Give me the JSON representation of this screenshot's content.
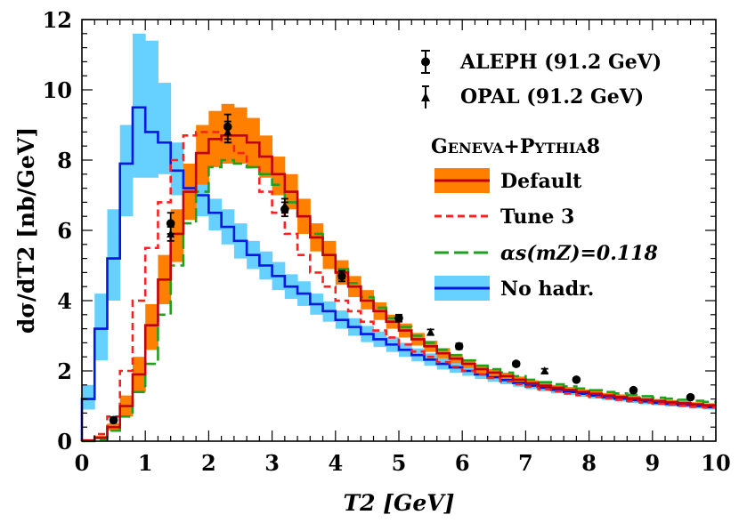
{
  "chart_data": {
    "type": "line",
    "xlabel": "T2 [GeV]",
    "ylabel": "dσ/dT2 [nb/GeV]",
    "xlim": [
      0,
      10
    ],
    "ylim": [
      0,
      12
    ],
    "x_ticks": [
      "0",
      "1",
      "2",
      "3",
      "4",
      "5",
      "6",
      "7",
      "8",
      "9",
      "10"
    ],
    "y_ticks": [
      "0",
      "2",
      "4",
      "6",
      "8",
      "10",
      "12"
    ],
    "legend_header": "Geneva+Pythia8",
    "legend_header_parts": [
      {
        "text": "G",
        "big": true
      },
      {
        "text": "ENEVA",
        "big": false
      },
      {
        "text": "+P",
        "big": true
      },
      {
        "text": "YTHIA",
        "big": false
      },
      {
        "text": "8",
        "big": true
      }
    ],
    "bin_edges": [
      0,
      0.2,
      0.4,
      0.6,
      0.8,
      1.0,
      1.2,
      1.4,
      1.6,
      1.8,
      2.0,
      2.2,
      2.4,
      2.6,
      2.8,
      3.0,
      3.2,
      3.4,
      3.6,
      3.8,
      4.0,
      4.2,
      4.4,
      4.6,
      4.8,
      5.0,
      5.2,
      5.4,
      5.6,
      5.8,
      6.0,
      6.2,
      6.4,
      6.6,
      6.8,
      7.0,
      7.2,
      7.4,
      7.6,
      7.8,
      8.0,
      8.2,
      8.4,
      8.6,
      8.8,
      9.0,
      9.2,
      9.4,
      9.6,
      9.8,
      10.0
    ],
    "series": [
      {
        "name": "Default",
        "style": "solid",
        "color": "#c0000a",
        "band_color": "#ff8000",
        "values": [
          0.02,
          0.1,
          0.4,
          1.0,
          1.9,
          3.3,
          4.6,
          5.9,
          7.1,
          8.2,
          8.6,
          8.7,
          8.7,
          8.5,
          8.1,
          7.6,
          7.1,
          6.4,
          5.8,
          5.3,
          4.8,
          4.4,
          4.0,
          3.7,
          3.4,
          3.15,
          2.9,
          2.7,
          2.5,
          2.35,
          2.2,
          2.05,
          1.95,
          1.85,
          1.75,
          1.65,
          1.58,
          1.52,
          1.46,
          1.4,
          1.35,
          1.3,
          1.26,
          1.22,
          1.18,
          1.14,
          1.11,
          1.08,
          1.05,
          1.02
        ],
        "band_low": [
          0.0,
          0.05,
          0.3,
          0.7,
          1.4,
          2.6,
          3.9,
          5.1,
          6.3,
          7.3,
          7.8,
          7.9,
          7.9,
          7.8,
          7.5,
          7.0,
          6.6,
          5.9,
          5.4,
          4.9,
          4.45,
          4.1,
          3.75,
          3.45,
          3.2,
          2.95,
          2.72,
          2.54,
          2.36,
          2.22,
          2.08,
          1.94,
          1.85,
          1.75,
          1.66,
          1.57,
          1.5,
          1.44,
          1.38,
          1.33,
          1.28,
          1.23,
          1.19,
          1.15,
          1.12,
          1.08,
          1.05,
          1.02,
          0.99,
          0.96
        ],
        "band_high": [
          0.05,
          0.15,
          0.5,
          1.3,
          2.4,
          3.9,
          5.3,
          6.6,
          7.9,
          9.0,
          9.4,
          9.6,
          9.5,
          9.2,
          8.7,
          8.1,
          7.6,
          6.9,
          6.2,
          5.7,
          5.15,
          4.7,
          4.3,
          3.95,
          3.6,
          3.35,
          3.08,
          2.86,
          2.65,
          2.48,
          2.32,
          2.16,
          2.05,
          1.95,
          1.84,
          1.73,
          1.66,
          1.6,
          1.54,
          1.47,
          1.42,
          1.37,
          1.33,
          1.29,
          1.24,
          1.2,
          1.17,
          1.14,
          1.11,
          1.08
        ]
      },
      {
        "name": "Tune 3",
        "style": "dash",
        "color": "#ff2020",
        "values": [
          0.02,
          0.2,
          0.7,
          2.0,
          4.0,
          5.5,
          6.8,
          8.0,
          8.7,
          8.8,
          8.8,
          8.5,
          8.2,
          7.8,
          7.1,
          6.5,
          5.9,
          5.3,
          4.8,
          4.4,
          4.0,
          3.7,
          3.4,
          3.15,
          2.95,
          2.75,
          2.55,
          2.4,
          2.25,
          2.12,
          2.0,
          1.9,
          1.8,
          1.7,
          1.62,
          1.55,
          1.48,
          1.42,
          1.36,
          1.31,
          1.26,
          1.22,
          1.18,
          1.14,
          1.1,
          1.07,
          1.04,
          1.01,
          0.98,
          0.96
        ]
      },
      {
        "name": "αs(mZ)=0.118",
        "style": "longdash",
        "color": "#20a020",
        "values": [
          0.0,
          0.05,
          0.3,
          0.7,
          1.4,
          2.2,
          3.6,
          5.0,
          6.2,
          7.1,
          7.8,
          8.0,
          7.9,
          7.8,
          7.6,
          7.3,
          6.8,
          6.4,
          5.9,
          5.3,
          4.9,
          4.5,
          4.1,
          3.8,
          3.5,
          3.25,
          3.0,
          2.8,
          2.6,
          2.45,
          2.3,
          2.15,
          2.05,
          1.95,
          1.85,
          1.75,
          1.68,
          1.62,
          1.56,
          1.5,
          1.45,
          1.4,
          1.36,
          1.32,
          1.28,
          1.24,
          1.21,
          1.18,
          1.15,
          1.12
        ]
      },
      {
        "name": "No hadr.",
        "style": "solid",
        "color": "#0018e0",
        "band_color": "#66d0ff",
        "values": [
          1.2,
          3.2,
          5.2,
          7.9,
          9.5,
          8.8,
          8.5,
          7.7,
          7.2,
          7.0,
          6.5,
          6.1,
          5.7,
          5.3,
          5.0,
          4.7,
          4.4,
          4.2,
          3.9,
          3.7,
          3.45,
          3.25,
          3.05,
          2.9,
          2.75,
          2.6,
          2.45,
          2.32,
          2.2,
          2.1,
          2.0,
          1.9,
          1.82,
          1.74,
          1.66,
          1.58,
          1.52,
          1.46,
          1.4,
          1.35,
          1.3,
          1.25,
          1.21,
          1.17,
          1.13,
          1.09,
          1.06,
          1.03,
          1.0,
          0.97
        ],
        "band_low": [
          0.9,
          2.3,
          4.0,
          6.4,
          7.5,
          7.5,
          7.6,
          7.0,
          6.6,
          6.4,
          6.0,
          5.6,
          5.2,
          4.9,
          4.6,
          4.3,
          4.05,
          3.85,
          3.6,
          3.4,
          3.2,
          3.0,
          2.82,
          2.68,
          2.54,
          2.4,
          2.27,
          2.15,
          2.04,
          1.95,
          1.86,
          1.77,
          1.69,
          1.62,
          1.55,
          1.48,
          1.42,
          1.36,
          1.31,
          1.26,
          1.21,
          1.17,
          1.13,
          1.09,
          1.05,
          1.02,
          0.99,
          0.96,
          0.93,
          0.9
        ],
        "band_high": [
          1.6,
          4.2,
          6.6,
          9.0,
          11.6,
          11.4,
          10.2,
          8.5,
          7.6,
          7.4,
          6.9,
          6.6,
          6.2,
          5.7,
          5.4,
          5.1,
          4.75,
          4.55,
          4.2,
          3.98,
          3.72,
          3.5,
          3.28,
          3.12,
          2.96,
          2.8,
          2.64,
          2.5,
          2.37,
          2.26,
          2.15,
          2.04,
          1.96,
          1.87,
          1.78,
          1.7,
          1.63,
          1.57,
          1.5,
          1.45,
          1.39,
          1.34,
          1.3,
          1.26,
          1.21,
          1.17,
          1.14,
          1.11,
          1.08,
          1.05
        ]
      }
    ],
    "data_series": [
      {
        "name": "ALEPH (91.2 GeV)",
        "marker": "circle",
        "points": [
          {
            "x": 0.5,
            "y": 0.6,
            "err": 0.08
          },
          {
            "x": 1.4,
            "y": 6.2,
            "err": 0.3
          },
          {
            "x": 2.3,
            "y": 8.95,
            "err": 0.35
          },
          {
            "x": 3.2,
            "y": 6.6,
            "err": 0.2
          },
          {
            "x": 4.1,
            "y": 4.7,
            "err": 0.15
          },
          {
            "x": 5.0,
            "y": 3.5,
            "err": 0.1
          },
          {
            "x": 5.95,
            "y": 2.7,
            "err": 0.08
          },
          {
            "x": 6.85,
            "y": 2.2,
            "err": 0.06
          },
          {
            "x": 7.8,
            "y": 1.75,
            "err": 0.05
          },
          {
            "x": 8.7,
            "y": 1.45,
            "err": 0.05
          },
          {
            "x": 9.6,
            "y": 1.25,
            "err": 0.05
          }
        ]
      },
      {
        "name": "OPAL (91.2 GeV)",
        "marker": "triangle",
        "points": [
          {
            "x": 1.4,
            "y": 5.9,
            "err": 0.2
          },
          {
            "x": 2.3,
            "y": 8.8,
            "err": 0.3
          },
          {
            "x": 3.2,
            "y": 6.7,
            "err": 0.2
          },
          {
            "x": 4.1,
            "y": 4.7,
            "err": 0.15
          },
          {
            "x": 5.5,
            "y": 3.1,
            "err": 0.08
          },
          {
            "x": 7.3,
            "y": 2.0,
            "err": 0.06
          }
        ]
      }
    ]
  }
}
